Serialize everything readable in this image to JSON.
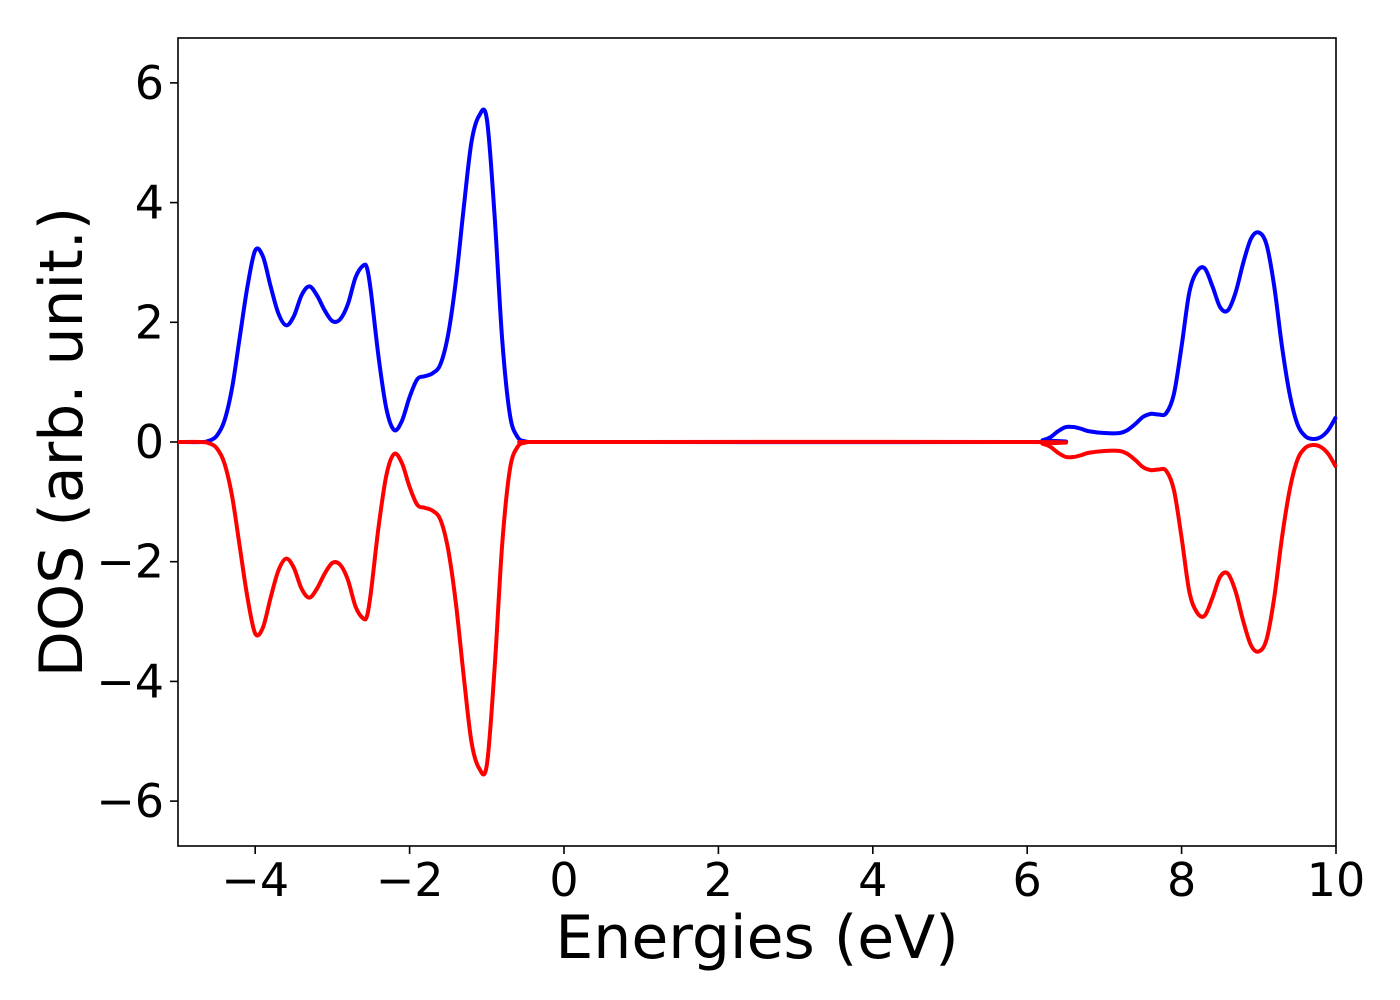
{
  "chart_data": {
    "type": "line",
    "title": "",
    "xlabel": "Energies (eV)",
    "ylabel": "DOS (arb. unit.)",
    "xlim": [
      -5,
      10
    ],
    "ylim": [
      -6.75,
      6.75
    ],
    "xticks": [
      -4,
      -2,
      0,
      2,
      4,
      6,
      8,
      10
    ],
    "xtick_labels": [
      "−4",
      "−2",
      "0",
      "2",
      "4",
      "6",
      "8",
      "10"
    ],
    "yticks": [
      6,
      4,
      2,
      0,
      -2,
      -4,
      -6
    ],
    "ytick_labels": [
      "6",
      "4",
      "2",
      "0",
      "−2",
      "−4",
      "−6"
    ],
    "grid": false,
    "legend": false,
    "series": [
      {
        "color": "#0000ff",
        "x": [
          -5.0,
          -4.7,
          -4.6,
          -4.5,
          -4.4,
          -4.3,
          -4.2,
          -4.1,
          -4.0,
          -3.9,
          -3.8,
          -3.7,
          -3.6,
          -3.5,
          -3.4,
          -3.3,
          -3.2,
          -3.1,
          -3.0,
          -2.9,
          -2.8,
          -2.7,
          -2.6,
          -2.55,
          -2.5,
          -2.4,
          -2.3,
          -2.2,
          -2.1,
          -2.0,
          -1.9,
          -1.8,
          -1.7,
          -1.6,
          -1.5,
          -1.4,
          -1.3,
          -1.2,
          -1.1,
          -1.0,
          -0.9,
          -0.8,
          -0.7,
          -0.6,
          -0.5,
          -0.4,
          0.0,
          6.0,
          6.2,
          6.3,
          6.4,
          6.5,
          6.6,
          6.7,
          6.8,
          7.0,
          7.2,
          7.3,
          7.4,
          7.5,
          7.6,
          7.7,
          7.8,
          7.9,
          8.0,
          8.1,
          8.2,
          8.3,
          8.4,
          8.5,
          8.6,
          8.7,
          8.8,
          8.9,
          9.0,
          9.1,
          9.2,
          9.3,
          9.4,
          9.5,
          9.6,
          9.7,
          9.8,
          9.9,
          10.0
        ],
        "y": [
          0.0,
          0.0,
          0.02,
          0.1,
          0.35,
          0.9,
          1.75,
          2.6,
          3.2,
          3.1,
          2.6,
          2.15,
          1.95,
          2.1,
          2.45,
          2.6,
          2.45,
          2.2,
          2.02,
          2.05,
          2.3,
          2.75,
          2.95,
          2.9,
          2.5,
          1.4,
          0.55,
          0.2,
          0.35,
          0.75,
          1.05,
          1.1,
          1.15,
          1.3,
          1.8,
          2.7,
          3.9,
          5.0,
          5.45,
          5.4,
          3.8,
          1.7,
          0.45,
          0.08,
          0.01,
          0.0,
          0.0,
          0.0,
          0.03,
          0.08,
          0.18,
          0.25,
          0.25,
          0.22,
          0.18,
          0.15,
          0.15,
          0.2,
          0.3,
          0.42,
          0.47,
          0.46,
          0.48,
          0.8,
          1.6,
          2.5,
          2.85,
          2.9,
          2.6,
          2.25,
          2.2,
          2.5,
          3.0,
          3.4,
          3.5,
          3.3,
          2.6,
          1.6,
          0.8,
          0.3,
          0.1,
          0.05,
          0.08,
          0.2,
          0.42
        ]
      },
      {
        "color": "#ff0000",
        "x": [
          -5.0,
          -4.7,
          -4.6,
          -4.5,
          -4.4,
          -4.3,
          -4.2,
          -4.1,
          -4.0,
          -3.9,
          -3.8,
          -3.7,
          -3.6,
          -3.5,
          -3.4,
          -3.3,
          -3.2,
          -3.1,
          -3.0,
          -2.9,
          -2.8,
          -2.7,
          -2.6,
          -2.55,
          -2.5,
          -2.4,
          -2.3,
          -2.2,
          -2.1,
          -2.0,
          -1.9,
          -1.8,
          -1.7,
          -1.6,
          -1.5,
          -1.4,
          -1.3,
          -1.2,
          -1.1,
          -1.0,
          -0.9,
          -0.8,
          -0.7,
          -0.6,
          -0.5,
          -0.4,
          0.0,
          6.0,
          6.2,
          6.3,
          6.4,
          6.5,
          6.6,
          6.7,
          6.8,
          7.0,
          7.2,
          7.3,
          7.4,
          7.5,
          7.6,
          7.7,
          7.8,
          7.9,
          8.0,
          8.1,
          8.2,
          8.3,
          8.4,
          8.5,
          8.6,
          8.7,
          8.8,
          8.9,
          9.0,
          9.1,
          9.2,
          9.3,
          9.4,
          9.5,
          9.6,
          9.7,
          9.8,
          9.9,
          10.0
        ],
        "y": [
          0.0,
          0.0,
          -0.02,
          -0.1,
          -0.35,
          -0.9,
          -1.75,
          -2.6,
          -3.2,
          -3.1,
          -2.6,
          -2.15,
          -1.95,
          -2.1,
          -2.45,
          -2.6,
          -2.45,
          -2.2,
          -2.02,
          -2.05,
          -2.3,
          -2.75,
          -2.95,
          -2.9,
          -2.5,
          -1.4,
          -0.55,
          -0.2,
          -0.35,
          -0.75,
          -1.05,
          -1.1,
          -1.15,
          -1.3,
          -1.8,
          -2.7,
          -3.9,
          -5.0,
          -5.45,
          -5.4,
          -3.8,
          -1.7,
          -0.45,
          -0.08,
          -0.01,
          0.0,
          0.0,
          0.0,
          -0.03,
          -0.08,
          -0.18,
          -0.25,
          -0.25,
          -0.22,
          -0.18,
          -0.15,
          -0.15,
          -0.2,
          -0.3,
          -0.42,
          -0.47,
          -0.46,
          -0.48,
          -0.8,
          -1.6,
          -2.5,
          -2.85,
          -2.9,
          -2.6,
          -2.25,
          -2.2,
          -2.5,
          -3.0,
          -3.4,
          -3.5,
          -3.3,
          -2.6,
          -1.6,
          -0.8,
          -0.3,
          -0.1,
          -0.05,
          -0.08,
          -0.2,
          -0.42
        ]
      }
    ]
  }
}
